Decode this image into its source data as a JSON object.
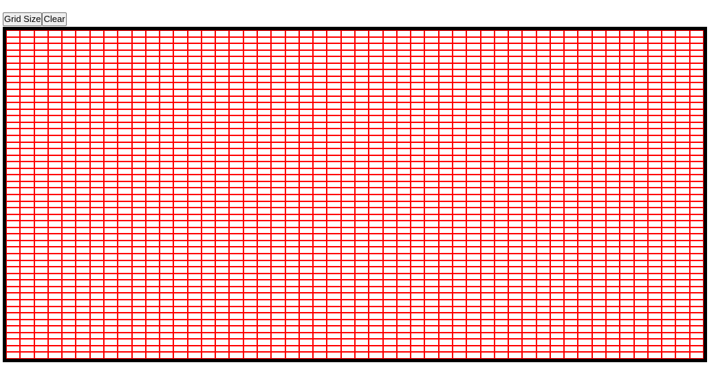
{
  "toolbar": {
    "grid_size_label": "Grid Size",
    "clear_label": "Clear"
  },
  "grid": {
    "columns": 50,
    "rows": 50,
    "cell_color": "#ffffff",
    "line_color": "#ff0000",
    "frame_color": "#000000"
  }
}
